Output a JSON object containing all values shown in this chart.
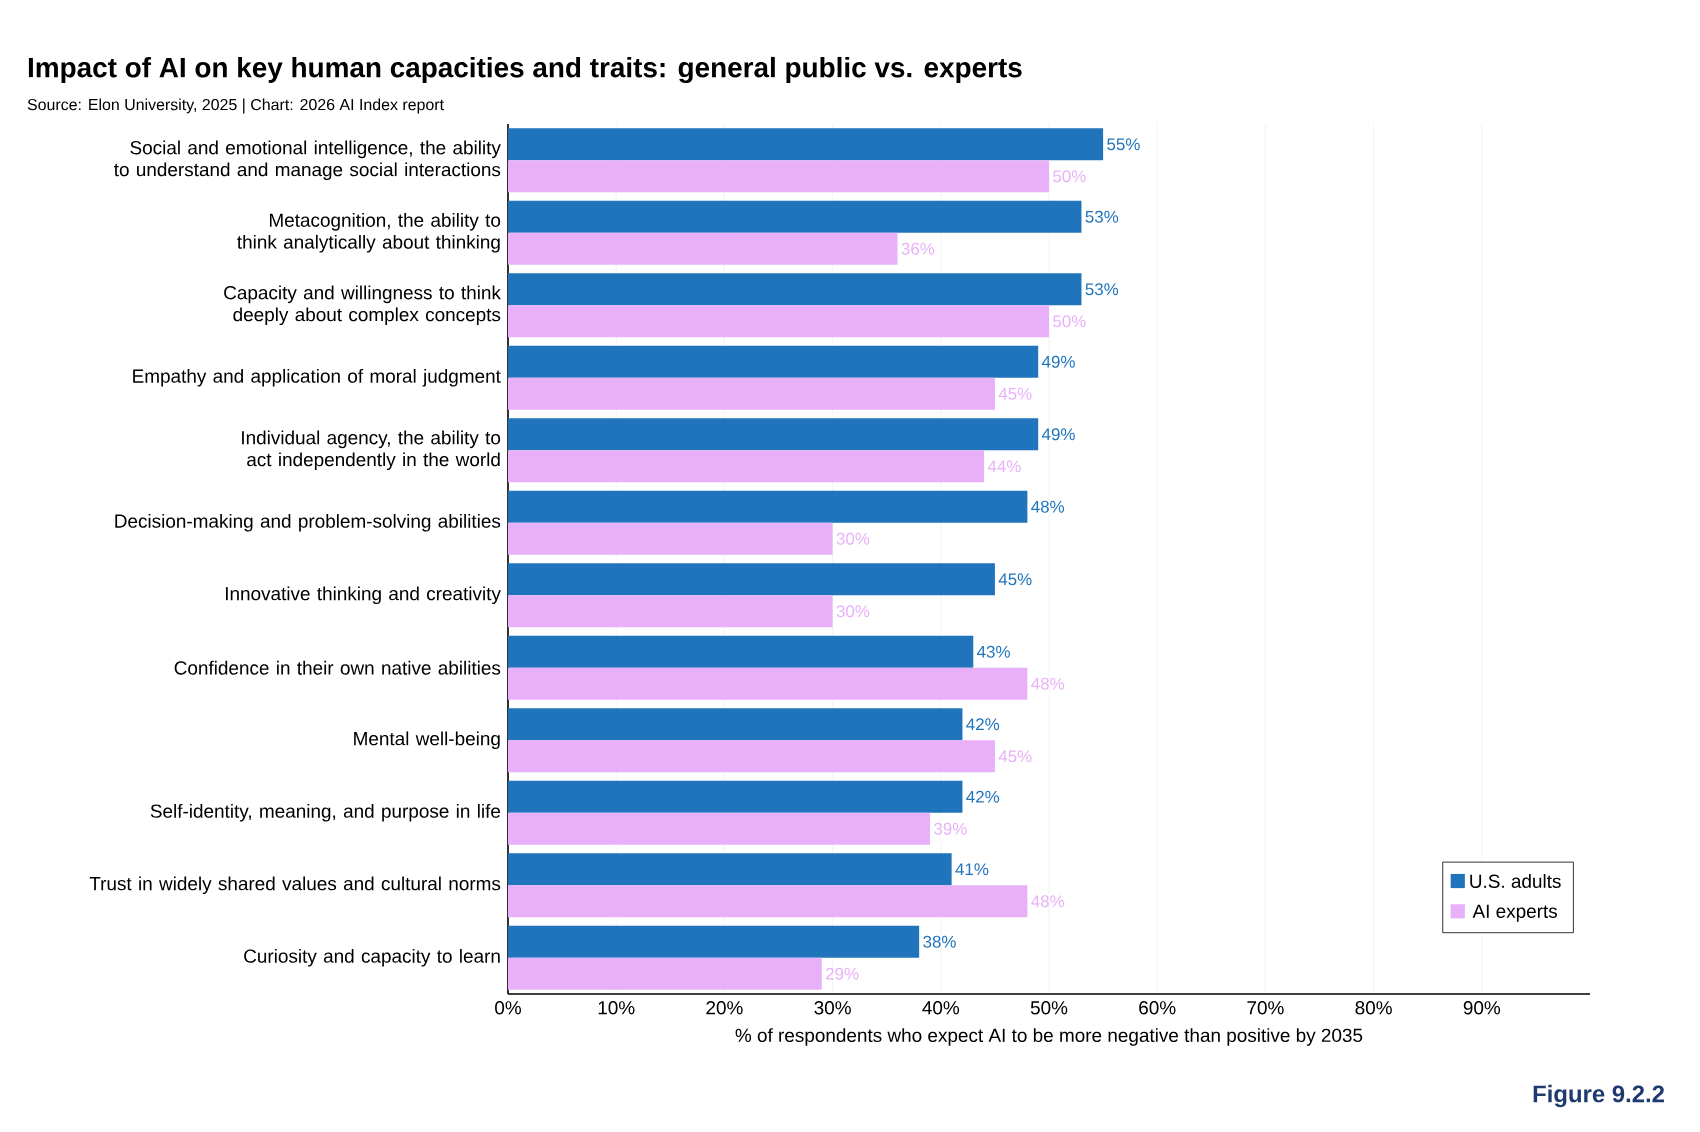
{
  "chart_data": {
    "type": "bar",
    "orientation": "horizontal",
    "title": "Impact of AI on key human capacities and traits: general public vs. experts",
    "subtitle": "Source: Elon University, 2025 | Chart: 2026 AI Index report",
    "xlabel": "% of respondents who expect AI to be more negative than positive by 2035",
    "categories": [
      "Social and emotional intelligence, the ability to understand and manage social interactions",
      "Metacognition, the ability to think analytically about thinking",
      "Capacity and willingness to think deeply about complex concepts",
      "Empathy and application of moral judgment",
      "Individual agency, the ability to act independently in the world",
      "Decision-making and problem-solving abilities",
      "Innovative thinking and creativity",
      "Confidence in their own native abilities",
      "Mental well-being",
      "Self-identity, meaning, and purpose in life",
      "Trust in widely shared values and cultural norms",
      "Curiosity and capacity to learn"
    ],
    "series": [
      {
        "name": "U.S. adults",
        "color": "#1f74bb",
        "values": [
          55,
          53,
          53,
          49,
          49,
          48,
          45,
          43,
          42,
          42,
          41,
          38
        ],
        "value_labels": [
          "55%",
          "53%",
          "53%",
          "49%",
          "49%",
          "48%",
          "45%",
          "43%",
          "42%",
          "42%",
          "41%",
          "38%"
        ]
      },
      {
        "name": "AI experts",
        "color": "#e8b0f8",
        "values": [
          50,
          36,
          50,
          45,
          44,
          30,
          30,
          48,
          45,
          39,
          48,
          29
        ],
        "value_labels": [
          "50%",
          "36%",
          "50%",
          "45%",
          "44%",
          "30%",
          "30%",
          "48%",
          "45%",
          "39%",
          "48%",
          "29%"
        ]
      }
    ],
    "xlim": [
      0,
      100
    ],
    "xticks": [
      {
        "value": 0,
        "label": "0%"
      },
      {
        "value": 10,
        "label": "10%"
      },
      {
        "value": 20,
        "label": "20%"
      },
      {
        "value": 30,
        "label": "30%"
      },
      {
        "value": 40,
        "label": "40%"
      },
      {
        "value": 50,
        "label": "50%"
      },
      {
        "value": 60,
        "label": "60%"
      },
      {
        "value": 70,
        "label": "70%"
      },
      {
        "value": 80,
        "label": "80%"
      },
      {
        "value": 90,
        "label": "90%"
      }
    ],
    "grid": "x",
    "legend": "bottom right",
    "annotations": [
      "Figure 9.2.2"
    ]
  }
}
